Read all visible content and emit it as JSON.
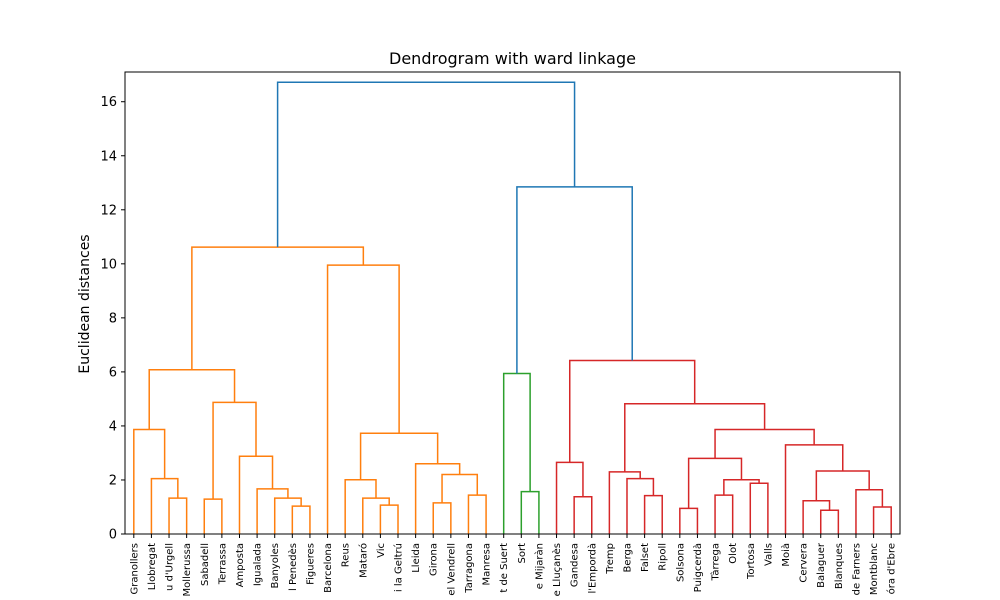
{
  "chart_data": {
    "type": "dendrogram",
    "title": "Dendrogram with ward linkage",
    "xlabel": "",
    "ylabel": "Euclidean distances",
    "ylim": [
      0,
      17.1
    ],
    "yticks": [
      0,
      2,
      4,
      6,
      8,
      10,
      12,
      14,
      16
    ],
    "grid": false,
    "leaves": [
      "Granollers",
      "Llobregat",
      "u d'Urgell",
      "Mollerussa",
      "Sabadell",
      "Terrassa",
      "Amposta",
      "Igualada",
      "Banyoles",
      "l Penedès",
      "Figueres",
      "Barcelona",
      "Reus",
      "Mataró",
      "Vic",
      "i la Geltrú",
      "Lleida",
      "Girona",
      "el Vendrell",
      "Tarragona",
      "Manresa",
      "t de Suert",
      "Sort",
      "e Mijaràn",
      "e Lluçanès",
      "Gandesa",
      "l'Empordà",
      "Tremp",
      "Berga",
      "Falset",
      "Ripoll",
      "Solsona",
      "Puigcerdà",
      "Tàrrega",
      "Olot",
      "Tortosa",
      "Valls",
      "Moià",
      "Cervera",
      "Balaguer",
      "Blanques",
      "de Farners",
      "Montblanc",
      "óra d'Ebre"
    ],
    "colors": {
      "orange": "#ff7f0e",
      "green": "#2ca02c",
      "red": "#d62728",
      "blue": "#1f77b4"
    },
    "merges": [
      {
        "id": "A1",
        "left": 2,
        "right": 3,
        "height": 1.33,
        "color": "orange"
      },
      {
        "id": "A2",
        "left": 1,
        "right": "A1",
        "height": 2.05,
        "color": "orange"
      },
      {
        "id": "A3",
        "left": 0,
        "right": "A2",
        "height": 3.87,
        "color": "orange"
      },
      {
        "id": "B1",
        "left": 4,
        "right": 5,
        "height": 1.29,
        "color": "orange"
      },
      {
        "id": "B2",
        "left": 9,
        "right": 10,
        "height": 1.03,
        "color": "orange"
      },
      {
        "id": "B3",
        "left": 8,
        "right": "B2",
        "height": 1.33,
        "color": "orange"
      },
      {
        "id": "B4",
        "left": 7,
        "right": "B3",
        "height": 1.67,
        "color": "orange"
      },
      {
        "id": "B5",
        "left": 6,
        "right": "B4",
        "height": 2.88,
        "color": "orange"
      },
      {
        "id": "B6",
        "left": "B1",
        "right": "B5",
        "height": 4.87,
        "color": "orange"
      },
      {
        "id": "L1",
        "left": "A3",
        "right": "B6",
        "height": 6.08,
        "color": "orange"
      },
      {
        "id": "C1",
        "left": 14,
        "right": 15,
        "height": 1.07,
        "color": "orange"
      },
      {
        "id": "C2",
        "left": 13,
        "right": "C1",
        "height": 1.33,
        "color": "orange"
      },
      {
        "id": "C3",
        "left": 12,
        "right": "C2",
        "height": 2.01,
        "color": "orange"
      },
      {
        "id": "D1",
        "left": 17,
        "right": 18,
        "height": 1.15,
        "color": "orange"
      },
      {
        "id": "D2",
        "left": 19,
        "right": 20,
        "height": 1.44,
        "color": "orange"
      },
      {
        "id": "D3",
        "left": "D1",
        "right": "D2",
        "height": 2.2,
        "color": "orange"
      },
      {
        "id": "D4",
        "left": 16,
        "right": "D3",
        "height": 2.6,
        "color": "orange"
      },
      {
        "id": "E1",
        "left": "C3",
        "right": "D4",
        "height": 3.73,
        "color": "orange"
      },
      {
        "id": "E2",
        "left": 11,
        "right": "E1",
        "height": 9.95,
        "color": "orange"
      },
      {
        "id": "F",
        "left": "L1",
        "right": "E2",
        "height": 10.62,
        "color": "orange"
      },
      {
        "id": "G1",
        "left": 22,
        "right": 23,
        "height": 1.57,
        "color": "green"
      },
      {
        "id": "G2",
        "left": 21,
        "right": "G1",
        "height": 5.94,
        "color": "green"
      },
      {
        "id": "H1",
        "left": 25,
        "right": 26,
        "height": 1.38,
        "color": "red"
      },
      {
        "id": "H2",
        "left": 24,
        "right": "H1",
        "height": 2.65,
        "color": "red"
      },
      {
        "id": "I1",
        "left": 29,
        "right": 30,
        "height": 1.42,
        "color": "red"
      },
      {
        "id": "I2",
        "left": 28,
        "right": "I1",
        "height": 2.05,
        "color": "red"
      },
      {
        "id": "I3",
        "left": 27,
        "right": "I2",
        "height": 2.3,
        "color": "red"
      },
      {
        "id": "J1",
        "left": 31,
        "right": 32,
        "height": 0.95,
        "color": "red"
      },
      {
        "id": "J2",
        "left": 33,
        "right": 34,
        "height": 1.44,
        "color": "red"
      },
      {
        "id": "J3",
        "left": 35,
        "right": 36,
        "height": 1.88,
        "color": "red"
      },
      {
        "id": "J4",
        "left": "J2",
        "right": "J3",
        "height": 2.01,
        "color": "red"
      },
      {
        "id": "J5",
        "left": "J1",
        "right": "J4",
        "height": 2.8,
        "color": "red"
      },
      {
        "id": "K1",
        "left": 39,
        "right": 40,
        "height": 0.88,
        "color": "red"
      },
      {
        "id": "K2",
        "left": 38,
        "right": "K1",
        "height": 1.23,
        "color": "red"
      },
      {
        "id": "K3",
        "left": 42,
        "right": 43,
        "height": 1.0,
        "color": "red"
      },
      {
        "id": "K4",
        "left": 41,
        "right": "K3",
        "height": 1.64,
        "color": "red"
      },
      {
        "id": "K5",
        "left": "K2",
        "right": "K4",
        "height": 2.33,
        "color": "red"
      },
      {
        "id": "K6",
        "left": 37,
        "right": "K5",
        "height": 3.3,
        "color": "red"
      },
      {
        "id": "M1",
        "left": "J5",
        "right": "K6",
        "height": 3.87,
        "color": "red"
      },
      {
        "id": "M2",
        "left": "I3",
        "right": "M1",
        "height": 4.82,
        "color": "red"
      },
      {
        "id": "M3",
        "left": "H2",
        "right": "M2",
        "height": 6.42,
        "color": "red"
      },
      {
        "id": "N",
        "left": "G2",
        "right": "M3",
        "height": 12.85,
        "color": "blue"
      },
      {
        "id": "ROOT",
        "left": "F",
        "right": "N",
        "height": 16.72,
        "color": "blue"
      }
    ]
  }
}
